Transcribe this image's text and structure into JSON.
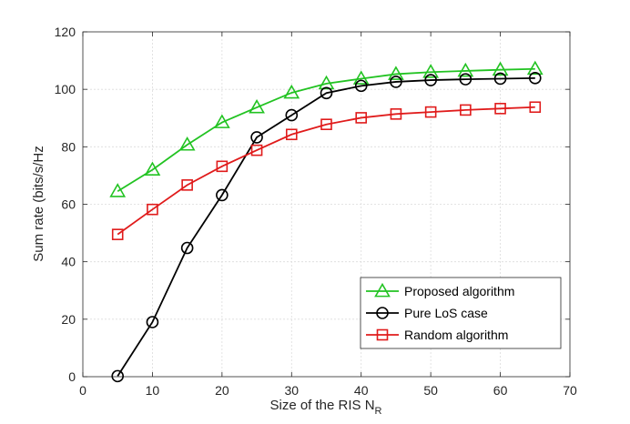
{
  "chart_data": {
    "type": "line",
    "title": "",
    "xlabel": "Size of the RIS N",
    "xlabel_subscript": "R",
    "ylabel": "Sum rate (bits/s/Hz",
    "xlim": [
      0,
      70
    ],
    "ylim": [
      0,
      120
    ],
    "xticks": [
      0,
      10,
      20,
      30,
      40,
      50,
      60,
      70
    ],
    "yticks": [
      0,
      20,
      40,
      60,
      80,
      100,
      120
    ],
    "grid": true,
    "legend_position": "bottom-right",
    "x": [
      5,
      10,
      15,
      20,
      25,
      30,
      35,
      40,
      45,
      50,
      55,
      60,
      65
    ],
    "series": [
      {
        "name": "Proposed algorithm",
        "color": "#22c322",
        "marker": "triangle",
        "values": [
          64.5,
          72,
          80.7,
          88.5,
          93.7,
          98.8,
          102,
          103.7,
          105.3,
          106,
          106.4,
          106.8,
          107.1
        ]
      },
      {
        "name": "Pure LoS case",
        "color": "#000000",
        "marker": "circle",
        "values": [
          0.2,
          19,
          44.8,
          63.2,
          83.3,
          91,
          98.7,
          101.2,
          102.6,
          103.2,
          103.5,
          103.7,
          103.9
        ]
      },
      {
        "name": "Random algorithm",
        "color": "#e01b1b",
        "marker": "square",
        "values": [
          49.5,
          58.2,
          66.7,
          73.2,
          78.8,
          84.3,
          87.8,
          90.1,
          91.4,
          92.1,
          92.8,
          93.3,
          93.8
        ]
      }
    ]
  }
}
